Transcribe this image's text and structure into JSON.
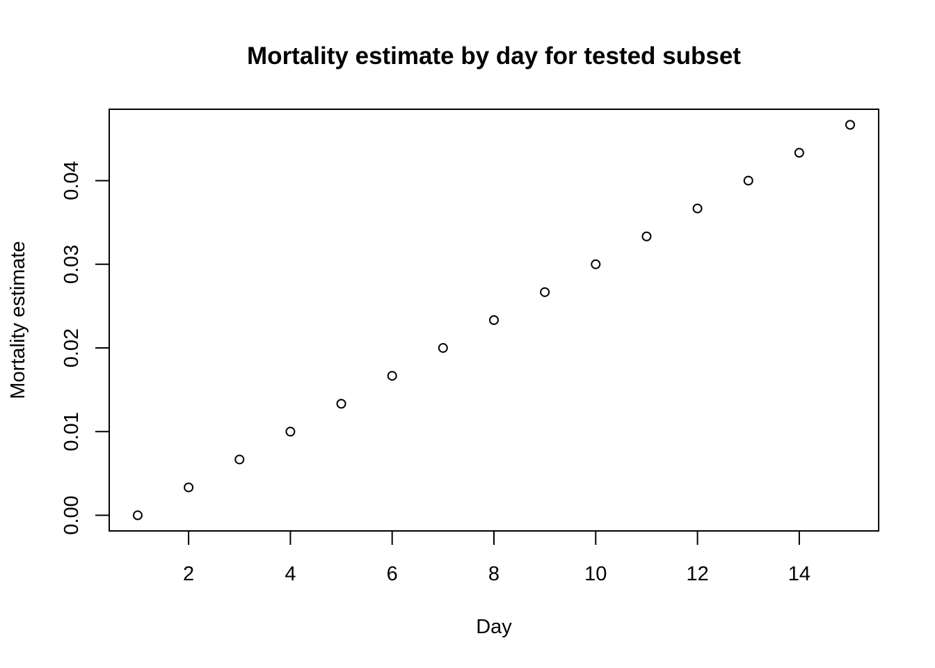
{
  "chart_data": {
    "type": "scatter",
    "title": "Mortality estimate by day for tested subset",
    "xlabel": "Day",
    "ylabel": "Mortality estimate",
    "x": [
      1,
      2,
      3,
      4,
      5,
      6,
      7,
      8,
      9,
      10,
      11,
      12,
      13,
      14,
      15
    ],
    "y": [
      0.0,
      0.00333,
      0.00667,
      0.01,
      0.01333,
      0.01667,
      0.02,
      0.02333,
      0.02667,
      0.03,
      0.03333,
      0.03667,
      0.04,
      0.04333,
      0.04667
    ],
    "xlim": [
      0.44,
      15.56
    ],
    "ylim": [
      -0.00187,
      0.04853
    ],
    "xticks": [
      2,
      4,
      6,
      8,
      10,
      12,
      14
    ],
    "xtick_labels": [
      "2",
      "4",
      "6",
      "8",
      "10",
      "12",
      "14"
    ],
    "yticks": [
      0.0,
      0.01,
      0.02,
      0.03,
      0.04
    ],
    "ytick_labels": [
      "0.00",
      "0.01",
      "0.02",
      "0.03",
      "0.04"
    ],
    "grid": false,
    "legend": "none",
    "marker": "open-circle",
    "colors": {
      "points": "#000000",
      "axes": "#000000",
      "background": "#ffffff"
    }
  }
}
